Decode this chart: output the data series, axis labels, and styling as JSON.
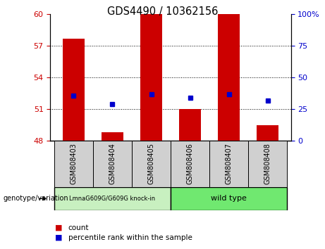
{
  "title": "GDS4490 / 10362156",
  "samples": [
    "GSM808403",
    "GSM808404",
    "GSM808405",
    "GSM808406",
    "GSM808407",
    "GSM808408"
  ],
  "bar_values": [
    57.7,
    48.8,
    60.0,
    51.0,
    60.0,
    49.5
  ],
  "bar_baseline": 48,
  "blue_values": [
    52.3,
    51.5,
    52.4,
    52.1,
    52.4,
    51.8
  ],
  "bar_color": "#cc0000",
  "blue_color": "#0000cc",
  "ylim_left": [
    48,
    60
  ],
  "yticks_left": [
    48,
    51,
    54,
    57,
    60
  ],
  "ylim_right": [
    0,
    100
  ],
  "yticks_right": [
    0,
    25,
    50,
    75,
    100
  ],
  "ytick_labels_right": [
    "0",
    "25",
    "50",
    "75",
    "100%"
  ],
  "dotted_lines": [
    51,
    54,
    57
  ],
  "group1_label": "LmnaG609G/G609G knock-in",
  "group2_label": "wild type",
  "group1_color": "#c8f0c0",
  "group2_color": "#70e870",
  "sample_box_color": "#d0d0d0",
  "genotype_label": "genotype/variation",
  "legend_count_label": "count",
  "legend_percentile_label": "percentile rank within the sample",
  "bar_width": 0.55
}
